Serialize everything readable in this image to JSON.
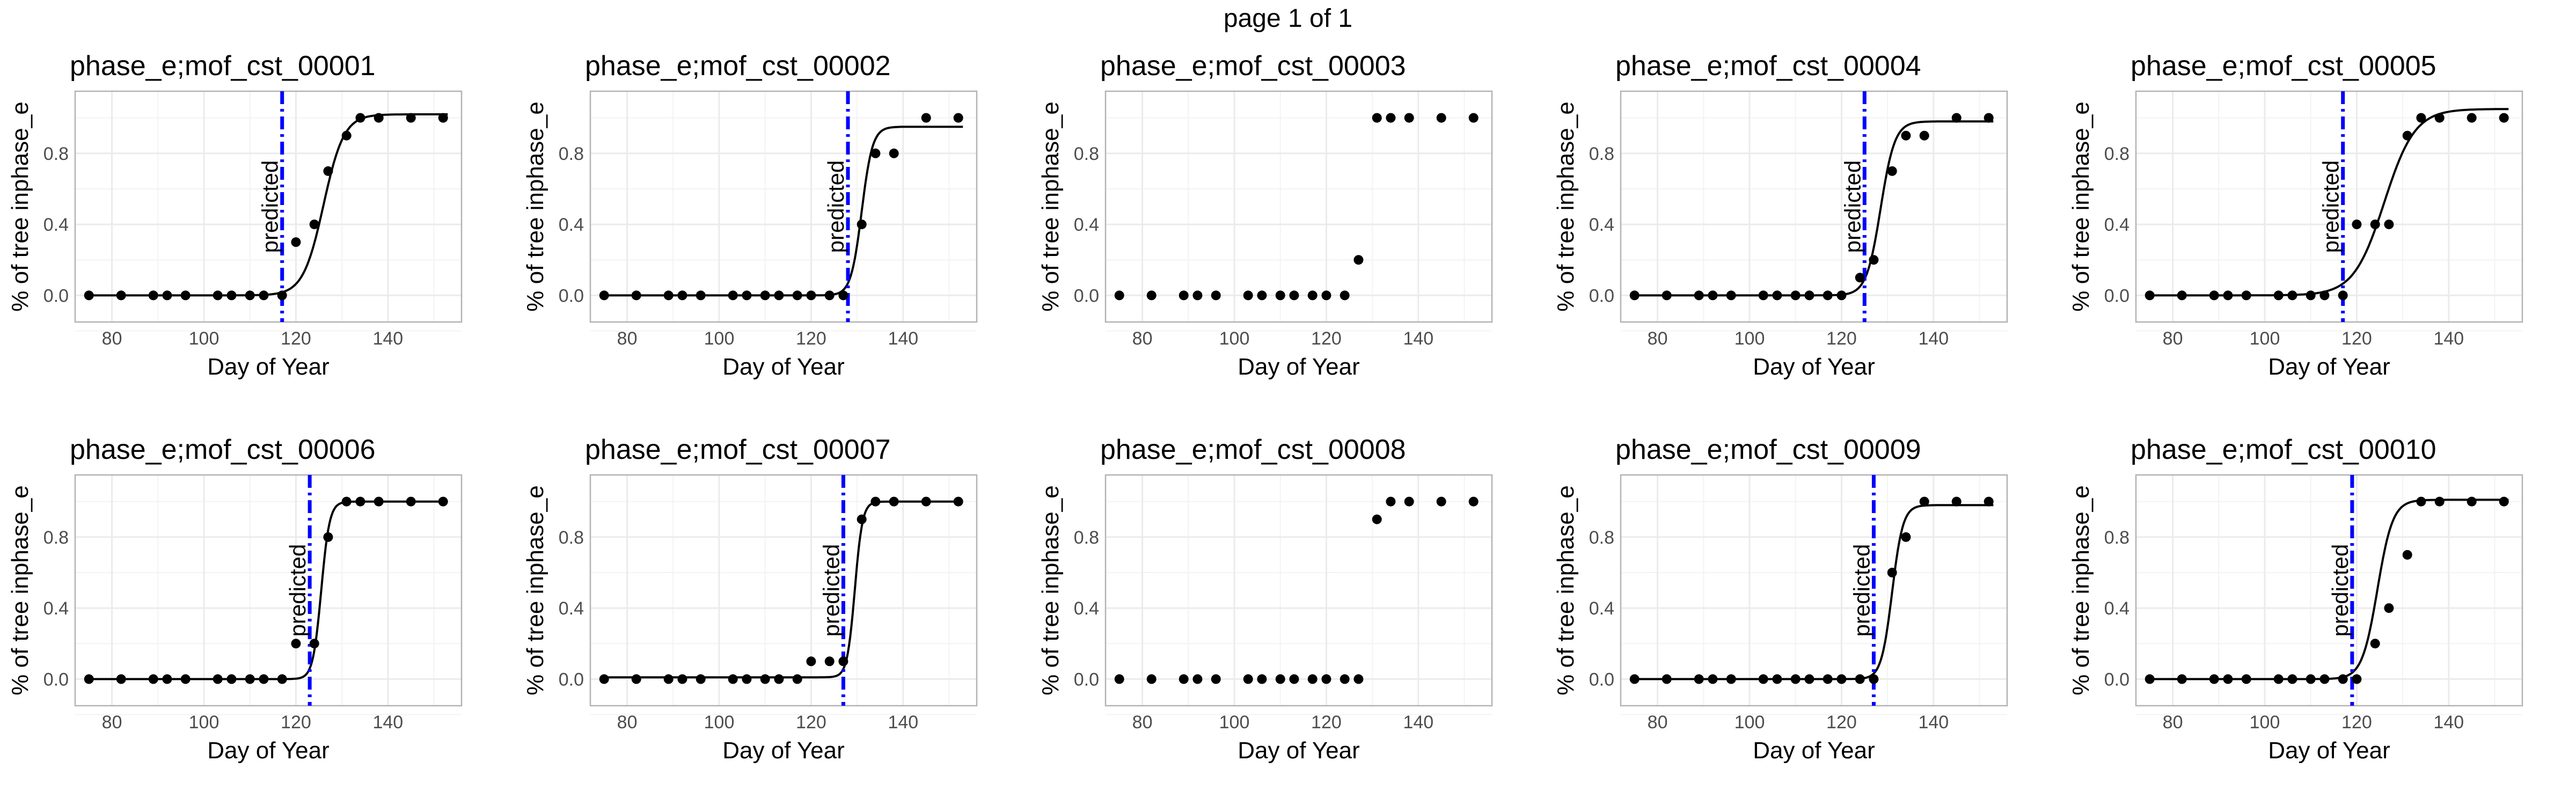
{
  "page_title": "page 1 of 1",
  "chart_data": {
    "type": "scatter",
    "layout": {
      "rows": 2,
      "cols": 5
    },
    "xlabel": "Day of Year",
    "ylabel": "% of tree inphase_e",
    "xlim": [
      72,
      156
    ],
    "ylim": [
      -0.15,
      1.15
    ],
    "xticks": [
      80,
      100,
      120,
      140
    ],
    "yticks": [
      0.0,
      0.4,
      0.8
    ],
    "ytick_labels": [
      "0.0",
      "0.4",
      "0.8"
    ],
    "grid": true,
    "prediction_label": "predicted",
    "colors": {
      "points": "#000000",
      "fit": "#000000",
      "prediction": "#0000ff",
      "grid": "#ebebeb",
      "border": "#b3b3b3"
    },
    "panels": [
      {
        "title": "phase_e;mof_cst_00001",
        "x": [
          75,
          82,
          89,
          92,
          96,
          103,
          106,
          110,
          113,
          117,
          120,
          124,
          127,
          131,
          134,
          138,
          145,
          152
        ],
        "y": [
          0,
          0,
          0,
          0,
          0,
          0,
          0,
          0,
          0,
          0,
          0.3,
          0.4,
          0.7,
          0.9,
          1.0,
          1.0,
          1.0,
          1.0
        ],
        "predicted_doy": 117,
        "fit": {
          "lower": 0,
          "upper": 1.02,
          "midpoint": 126,
          "slope": 0.45
        }
      },
      {
        "title": "phase_e;mof_cst_00002",
        "x": [
          75,
          82,
          89,
          92,
          96,
          103,
          106,
          110,
          113,
          117,
          120,
          124,
          127,
          131,
          134,
          138,
          145,
          152
        ],
        "y": [
          0,
          0,
          0,
          0,
          0,
          0,
          0,
          0,
          0,
          0,
          0,
          0,
          0,
          0.4,
          0.8,
          0.8,
          1.0,
          1.0
        ],
        "predicted_doy": 128,
        "fit": {
          "lower": 0,
          "upper": 0.95,
          "midpoint": 131,
          "slope": 0.85
        }
      },
      {
        "title": "phase_e;mof_cst_00003",
        "x": [
          75,
          82,
          89,
          92,
          96,
          103,
          106,
          110,
          113,
          117,
          120,
          124,
          127,
          131,
          134,
          138,
          145,
          152
        ],
        "y": [
          0,
          0,
          0,
          0,
          0,
          0,
          0,
          0,
          0,
          0,
          0,
          0,
          0.2,
          1.0,
          1.0,
          1.0,
          1.0,
          1.0
        ],
        "predicted_doy": null,
        "fit": null
      },
      {
        "title": "phase_e;mof_cst_00004",
        "x": [
          75,
          82,
          89,
          92,
          96,
          103,
          106,
          110,
          113,
          117,
          120,
          124,
          127,
          131,
          134,
          138,
          145,
          152
        ],
        "y": [
          0,
          0,
          0,
          0,
          0,
          0,
          0,
          0,
          0,
          0,
          0,
          0.1,
          0.2,
          0.7,
          0.9,
          0.9,
          1.0,
          1.0
        ],
        "predicted_doy": 125,
        "fit": {
          "lower": 0,
          "upper": 0.98,
          "midpoint": 128.5,
          "slope": 0.65
        }
      },
      {
        "title": "phase_e;mof_cst_00005",
        "x": [
          75,
          82,
          89,
          92,
          96,
          103,
          106,
          110,
          113,
          117,
          120,
          124,
          127,
          131,
          134,
          138,
          145,
          152
        ],
        "y": [
          0,
          0,
          0,
          0,
          0,
          0,
          0,
          0,
          0,
          0,
          0.4,
          0.4,
          0.4,
          0.9,
          1.0,
          1.0,
          1.0,
          1.0
        ],
        "predicted_doy": 117,
        "fit": {
          "lower": 0,
          "upper": 1.05,
          "midpoint": 126,
          "slope": 0.3
        }
      },
      {
        "title": "phase_e;mof_cst_00006",
        "x": [
          75,
          82,
          89,
          92,
          96,
          103,
          106,
          110,
          113,
          117,
          120,
          124,
          127,
          131,
          134,
          138,
          145,
          152
        ],
        "y": [
          0,
          0,
          0,
          0,
          0,
          0,
          0,
          0,
          0,
          0,
          0.2,
          0.2,
          0.8,
          1.0,
          1.0,
          1.0,
          1.0,
          1.0
        ],
        "predicted_doy": 123,
        "fit": {
          "lower": 0,
          "upper": 1.0,
          "midpoint": 125.5,
          "slope": 1.1
        }
      },
      {
        "title": "phase_e;mof_cst_00007",
        "x": [
          75,
          82,
          89,
          92,
          96,
          103,
          106,
          110,
          113,
          117,
          120,
          124,
          127,
          131,
          134,
          138,
          145,
          152
        ],
        "y": [
          0,
          0,
          0,
          0,
          0,
          0,
          0,
          0,
          0,
          0,
          0.1,
          0.1,
          0.1,
          0.9,
          1.0,
          1.0,
          1.0,
          1.0
        ],
        "predicted_doy": 127,
        "fit": {
          "lower": 0.01,
          "upper": 1.0,
          "midpoint": 129.5,
          "slope": 1.2
        }
      },
      {
        "title": "phase_e;mof_cst_00008",
        "x": [
          75,
          82,
          89,
          92,
          96,
          103,
          106,
          110,
          113,
          117,
          120,
          124,
          127,
          131,
          134,
          138,
          145,
          152
        ],
        "y": [
          0,
          0,
          0,
          0,
          0,
          0,
          0,
          0,
          0,
          0,
          0,
          0,
          0,
          0.9,
          1.0,
          1.0,
          1.0,
          1.0
        ],
        "predicted_doy": null,
        "fit": null
      },
      {
        "title": "phase_e;mof_cst_00009",
        "x": [
          75,
          82,
          89,
          92,
          96,
          103,
          106,
          110,
          113,
          117,
          120,
          124,
          127,
          131,
          134,
          138,
          145,
          152
        ],
        "y": [
          0,
          0,
          0,
          0,
          0,
          0,
          0,
          0,
          0,
          0,
          0,
          0,
          0,
          0.6,
          0.8,
          1.0,
          1.0,
          1.0
        ],
        "predicted_doy": 127,
        "fit": {
          "lower": 0,
          "upper": 0.98,
          "midpoint": 131,
          "slope": 0.85
        }
      },
      {
        "title": "phase_e;mof_cst_00010",
        "x": [
          75,
          82,
          89,
          92,
          96,
          103,
          106,
          110,
          113,
          117,
          120,
          124,
          127,
          131,
          134,
          138,
          145,
          152
        ],
        "y": [
          0,
          0,
          0,
          0,
          0,
          0,
          0,
          0,
          0,
          0,
          0,
          0.2,
          0.4,
          0.7,
          1.0,
          1.0,
          1.0,
          1.0
        ],
        "predicted_doy": 119,
        "fit": {
          "lower": 0,
          "upper": 1.01,
          "midpoint": 124.5,
          "slope": 0.6
        }
      }
    ]
  }
}
